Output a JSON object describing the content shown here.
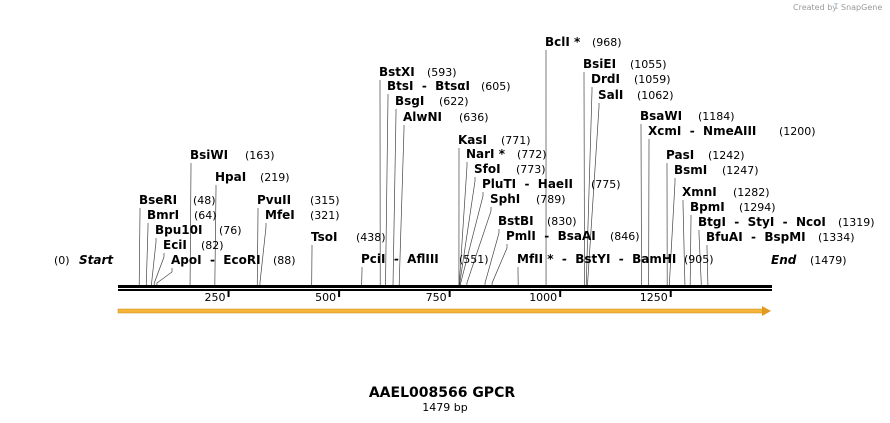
{
  "watermark": {
    "text": "Created by",
    "brand": "SnapGene"
  },
  "sequence": {
    "name": "AAEL008566 GPCR",
    "length_label": "1479 bp",
    "length": 1479
  },
  "start": {
    "label": "Start",
    "pos": "(0)"
  },
  "end": {
    "label": "End",
    "pos": "(1479)"
  },
  "ruler_ticks": [
    "250",
    "500",
    "750",
    "1000",
    "1250"
  ],
  "ruler_values": [
    250,
    500,
    750,
    1000,
    1250
  ],
  "feature": {
    "color": "#f0a020"
  },
  "sites": [
    {
      "label": "BclI *",
      "pos": "(968)"
    },
    {
      "label": "BsiEI",
      "pos": "(1055)"
    },
    {
      "label": "DrdI",
      "pos": "(1059)"
    },
    {
      "label": "SalI",
      "pos": "(1062)"
    },
    {
      "label": "BstXI",
      "pos": "(593)"
    },
    {
      "label": "BtsI - BtsαI",
      "pos": "(605)"
    },
    {
      "label": "BsgI",
      "pos": "(622)"
    },
    {
      "label": "AlwNI",
      "pos": "(636)"
    },
    {
      "label": "BsaWI",
      "pos": "(1184)"
    },
    {
      "label": "XcmI - NmeAIII",
      "pos": "(1200)"
    },
    {
      "label": "KasI",
      "pos": "(771)"
    },
    {
      "label": "NarI *",
      "pos": "(772)"
    },
    {
      "label": "SfoI",
      "pos": "(773)"
    },
    {
      "label": "PluTI - HaeII",
      "pos": "(775)"
    },
    {
      "label": "SphI",
      "pos": "(789)"
    },
    {
      "label": "BstBI",
      "pos": "(830)"
    },
    {
      "label": "PmlI - BsaAI",
      "pos": "(846)"
    },
    {
      "label": "MfII * - BstYI - BamHI",
      "pos": "(905)"
    },
    {
      "label": "PasI",
      "pos": "(1242)"
    },
    {
      "label": "BsmI",
      "pos": "(1247)"
    },
    {
      "label": "XmnI",
      "pos": "(1282)"
    },
    {
      "label": "BpmI",
      "pos": "(1294)"
    },
    {
      "label": "BtgI - StyI - NcoI",
      "pos": "(1319)"
    },
    {
      "label": "BfuAI - BspMI",
      "pos": "(1334)"
    },
    {
      "label": "BsiWI",
      "pos": "(163)"
    },
    {
      "label": "HpaI",
      "pos": "(219)"
    },
    {
      "label": "BseRI",
      "pos": "(48)"
    },
    {
      "label": "BmrI",
      "pos": "(64)"
    },
    {
      "label": "Bpu10I",
      "pos": "(76)"
    },
    {
      "label": "EciI",
      "pos": "(82)"
    },
    {
      "label": "ApoI - EcoRI",
      "pos": "(88)"
    },
    {
      "label": "PvuII",
      "pos": "(315)"
    },
    {
      "label": "MfeI",
      "pos": "(321)"
    },
    {
      "label": "TsoI",
      "pos": "(438)"
    },
    {
      "label": "PciI - AflIII",
      "pos": "(551)"
    }
  ]
}
